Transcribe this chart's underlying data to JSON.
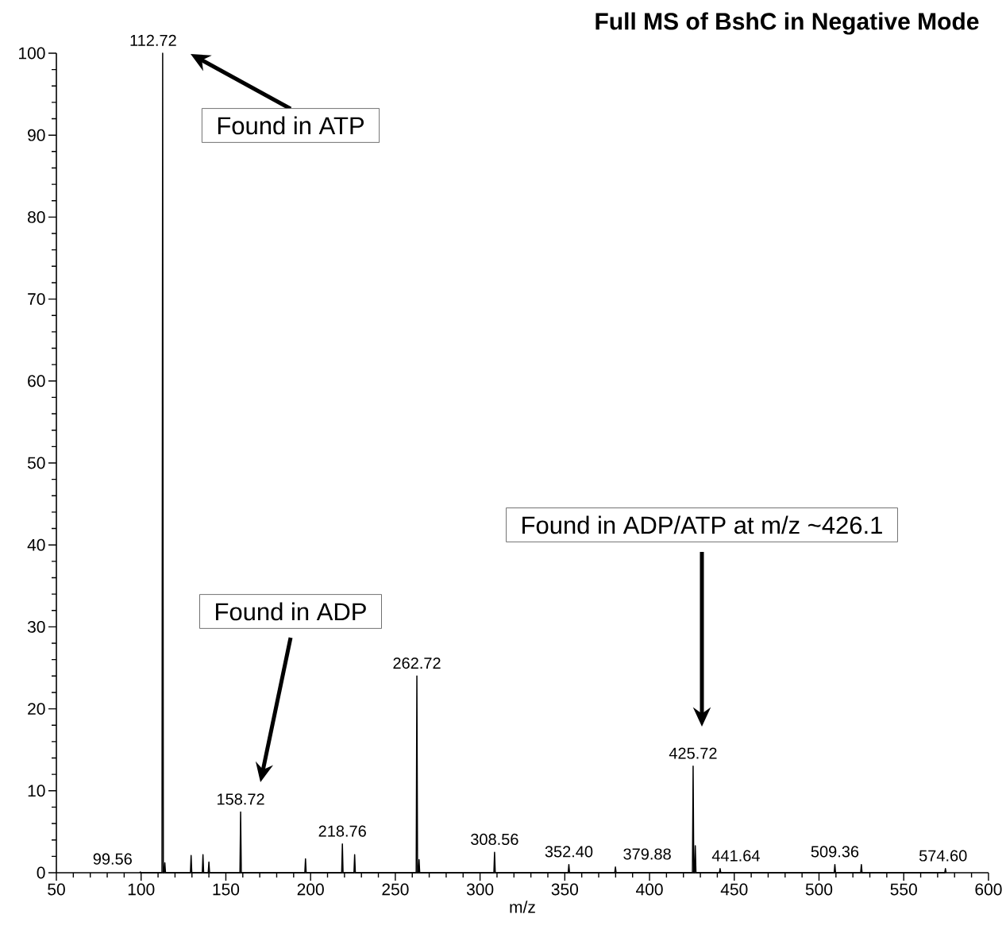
{
  "chart_data": {
    "type": "line",
    "title": "Full MS of BshC in Negative Mode",
    "xlabel": "m/z",
    "series": [
      {
        "color": "#000000",
        "x": [
          99.16,
          99.56,
          99.96,
          112.32,
          112.72,
          113.12,
          113.6,
          114.0,
          114.4,
          129.1,
          129.5,
          129.9,
          136.1,
          136.5,
          136.9,
          139.6,
          140.0,
          140.4,
          158.32,
          158.72,
          159.12,
          196.6,
          197.0,
          197.4,
          218.36,
          218.76,
          219.16,
          225.6,
          226.0,
          226.4,
          262.32,
          262.72,
          263.12,
          263.6,
          264.0,
          264.4,
          308.16,
          308.56,
          308.96,
          352.0,
          352.4,
          352.8,
          379.48,
          379.88,
          380.28,
          425.32,
          425.72,
          426.12,
          426.6,
          427.0,
          427.4,
          441.24,
          441.64,
          442.04,
          508.96,
          509.36,
          509.76,
          524.6,
          525.0,
          525.4,
          574.2,
          574.6,
          575.0
        ],
        "values": [
          0,
          0.1,
          0,
          0,
          100,
          0,
          0,
          1.2,
          0,
          0,
          2.1,
          0,
          0,
          2.2,
          0,
          0,
          1.3,
          0,
          0,
          7.4,
          0,
          0,
          1.7,
          0,
          0,
          3.5,
          0,
          0,
          2.2,
          0,
          0,
          24,
          0,
          0,
          1.6,
          0,
          0,
          2.5,
          0,
          0,
          1.0,
          0,
          0,
          0.7,
          0,
          0,
          13,
          0,
          0,
          3.3,
          0,
          0,
          0.5,
          0,
          0,
          1.0,
          0,
          0,
          1.0,
          0,
          0,
          0.5,
          0
        ]
      }
    ],
    "xlim": [
      50,
      600
    ],
    "ylim": [
      0,
      100
    ],
    "xticks": [
      50,
      100,
      150,
      200,
      250,
      300,
      350,
      400,
      450,
      500,
      550,
      600
    ],
    "yticks": [
      0,
      10,
      20,
      30,
      40,
      50,
      60,
      70,
      80,
      90,
      100
    ],
    "marker": "none",
    "line_style": "solid",
    "annotations": [
      {
        "text": "99.56",
        "x": 99.56,
        "y": 0.1
      },
      {
        "text": "112.72",
        "x": 112.72,
        "y": 100
      },
      {
        "text": "158.72",
        "x": 158.72,
        "y": 7.4
      },
      {
        "text": "218.76",
        "x": 218.76,
        "y": 3.5
      },
      {
        "text": "262.72",
        "x": 262.72,
        "y": 24
      },
      {
        "text": "308.56",
        "x": 308.56,
        "y": 2.5
      },
      {
        "text": "352.40",
        "x": 352.4,
        "y": 1.0
      },
      {
        "text": "379.88",
        "x": 379.88,
        "y": 0.7
      },
      {
        "text": "425.72",
        "x": 425.72,
        "y": 13
      },
      {
        "text": "441.64",
        "x": 441.64,
        "y": 0.5
      },
      {
        "text": "509.36",
        "x": 509.36,
        "y": 1.0
      },
      {
        "text": "574.60",
        "x": 574.6,
        "y": 0.5
      },
      "Found in ATP",
      "Found in ADP",
      "Found in ADP/ATP at m/z ~426.1"
    ]
  }
}
